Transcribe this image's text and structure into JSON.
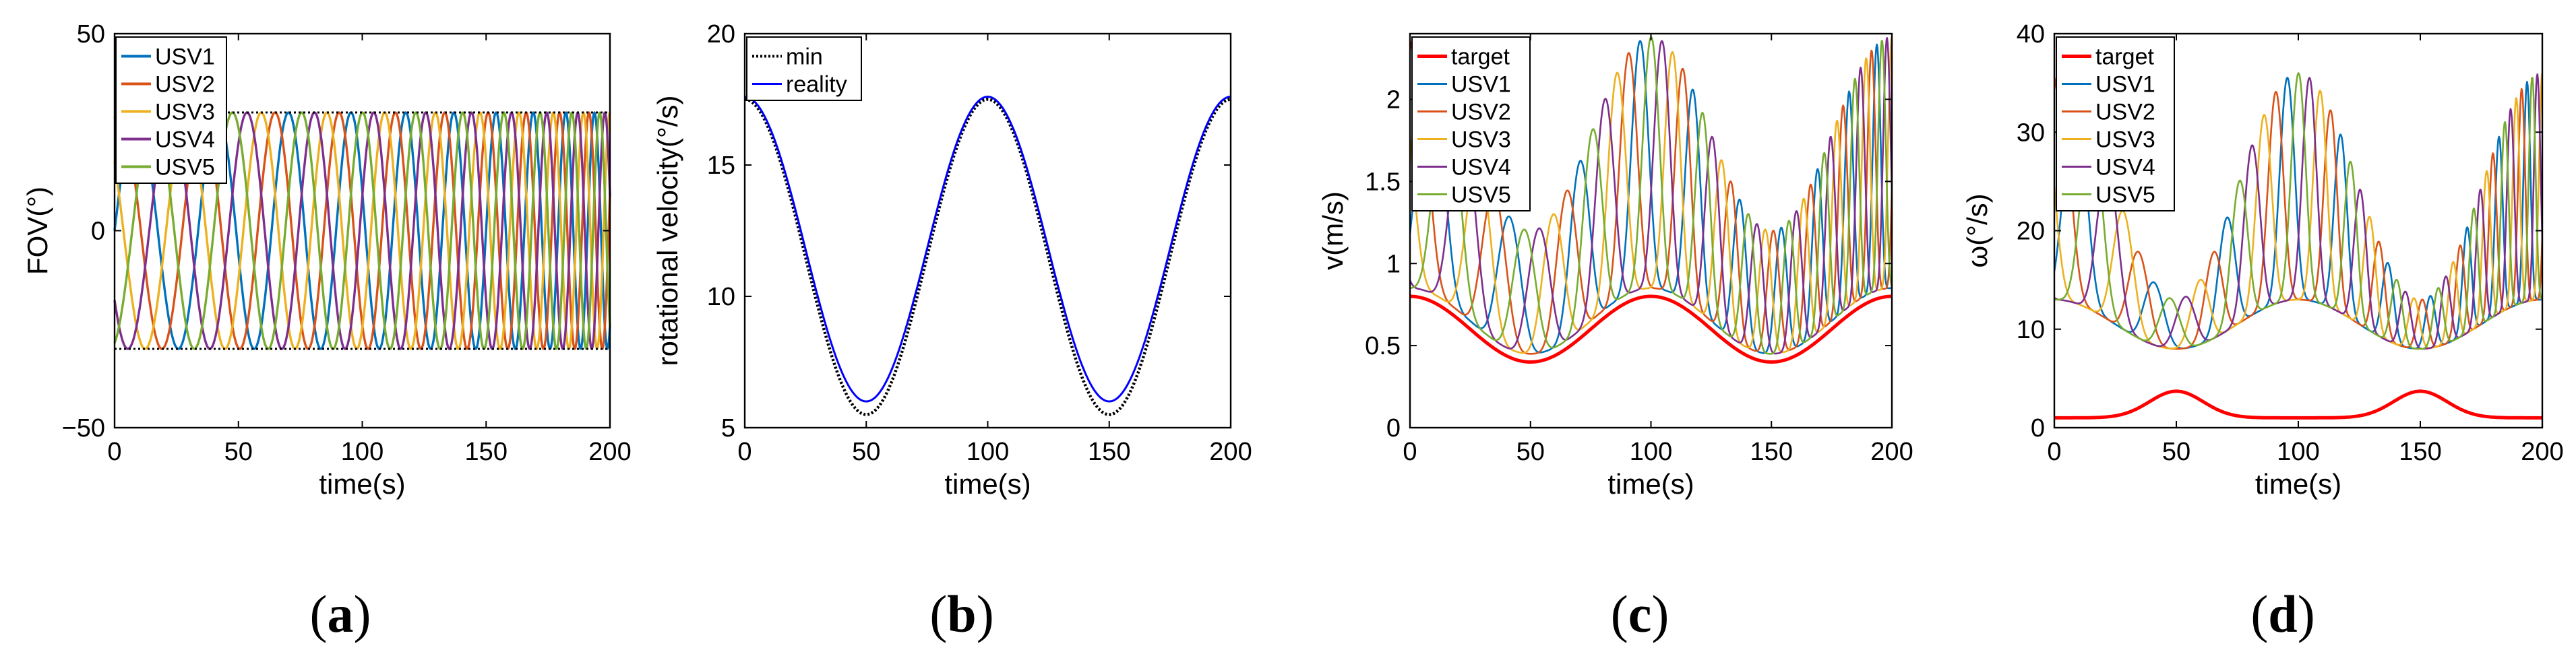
{
  "figure": {
    "panel_labels": [
      "(a)",
      "(b)",
      "(c)",
      "(d)"
    ],
    "panel_letters": [
      "a",
      "b",
      "c",
      "d"
    ]
  },
  "chart_data": [
    {
      "id": "a",
      "type": "line",
      "xlabel": "time(s)",
      "ylabel": "FOV(°)",
      "xlim": [
        0,
        200
      ],
      "ylim": [
        -50,
        50
      ],
      "xticks": [
        "0",
        "50",
        "100",
        "150",
        "200"
      ],
      "yticks": [
        "−50",
        "0",
        "50"
      ],
      "ytick_values": [
        -50,
        0,
        50
      ],
      "legend": [
        "USV1",
        "USV2",
        "USV3",
        "USV4",
        "USV5"
      ],
      "legend_colors": [
        "#0072BD",
        "#D95319",
        "#EDB120",
        "#7E2F8E",
        "#77AC30"
      ],
      "bounds": {
        "name": "bounds",
        "values": [
          -30,
          30
        ],
        "color": "#000000",
        "style": "dotted"
      },
      "series_model": {
        "amplitude": 30,
        "period_start_s": 36,
        "period_end_s": 10,
        "phase_offsets_deg": [
          0,
          72,
          144,
          216,
          288
        ]
      }
    },
    {
      "id": "b",
      "type": "line",
      "xlabel": "time(s)",
      "ylabel": "rotational velocity(°/s)",
      "xlim": [
        0,
        200
      ],
      "ylim": [
        5,
        20
      ],
      "xticks": [
        "0",
        "50",
        "100",
        "150",
        "200"
      ],
      "yticks": [
        "5",
        "10",
        "15",
        "20"
      ],
      "ytick_values": [
        5,
        10,
        15,
        20
      ],
      "legend": [
        "min",
        "reality"
      ],
      "legend_colors": [
        "#000000",
        "#0000FF"
      ],
      "series": [
        {
          "name": "min",
          "x": [
            0,
            25,
            50,
            75,
            100,
            125,
            150,
            175,
            200
          ],
          "values": [
            17.5,
            12.2,
            5.5,
            12.2,
            17.5,
            12.2,
            5.5,
            12.2,
            17.5
          ]
        },
        {
          "name": "reality",
          "x": [
            0,
            25,
            50,
            75,
            100,
            125,
            150,
            175,
            200
          ],
          "values": [
            17.6,
            12.3,
            6.0,
            12.3,
            17.5,
            12.3,
            6.0,
            12.3,
            17.6
          ]
        }
      ]
    },
    {
      "id": "c",
      "type": "line",
      "xlabel": "time(s)",
      "ylabel": "v(m/s)",
      "xlim": [
        0,
        200
      ],
      "ylim": [
        0,
        2.4
      ],
      "xticks": [
        "0",
        "50",
        "100",
        "150",
        "200"
      ],
      "yticks": [
        "0",
        "0.5",
        "1",
        "1.5",
        "2"
      ],
      "ytick_values": [
        0,
        0.5,
        1,
        1.5,
        2
      ],
      "legend": [
        "target",
        "USV1",
        "USV2",
        "USV3",
        "USV4",
        "USV5"
      ],
      "legend_colors": [
        "#FF0000",
        "#0072BD",
        "#D95319",
        "#EDB120",
        "#7E2F8E",
        "#77AC30"
      ],
      "target": {
        "name": "target",
        "x": [
          0,
          50,
          100,
          150,
          200
        ],
        "values": [
          0.8,
          0.4,
          0.8,
          0.4,
          0.8
        ]
      },
      "series_model": {
        "baseline_extra": 0.05,
        "peak_min": 1.2,
        "peak_max": 2.38,
        "period_start_s": 36,
        "period_end_s": 10,
        "phase_offsets_deg": [
          0,
          72,
          144,
          216,
          288
        ]
      }
    },
    {
      "id": "d",
      "type": "line",
      "xlabel": "time(s)",
      "ylabel": "ω(°/s)",
      "xlim": [
        0,
        200
      ],
      "ylim": [
        0,
        40
      ],
      "xticks": [
        "0",
        "50",
        "100",
        "150",
        "200"
      ],
      "yticks": [
        "0",
        "10",
        "20",
        "30",
        "40"
      ],
      "ytick_values": [
        0,
        10,
        20,
        30,
        40
      ],
      "legend": [
        "target",
        "USV1",
        "USV2",
        "USV3",
        "USV4",
        "USV5"
      ],
      "legend_colors": [
        "#FF0000",
        "#0072BD",
        "#D95319",
        "#EDB120",
        "#7E2F8E",
        "#77AC30"
      ],
      "target": {
        "name": "target",
        "x": [
          0,
          25,
          50,
          75,
          100,
          125,
          150,
          175,
          200
        ],
        "values": [
          1.0,
          1.6,
          3.7,
          1.6,
          1.0,
          1.6,
          3.7,
          1.6,
          1.0
        ]
      },
      "series_model": {
        "baseline_max": 13,
        "baseline_min": 8,
        "peak_min": 13,
        "peak_max": 36,
        "period_start_s": 36,
        "period_end_s": 10,
        "phase_offsets_deg": [
          0,
          72,
          144,
          216,
          288
        ]
      }
    }
  ]
}
